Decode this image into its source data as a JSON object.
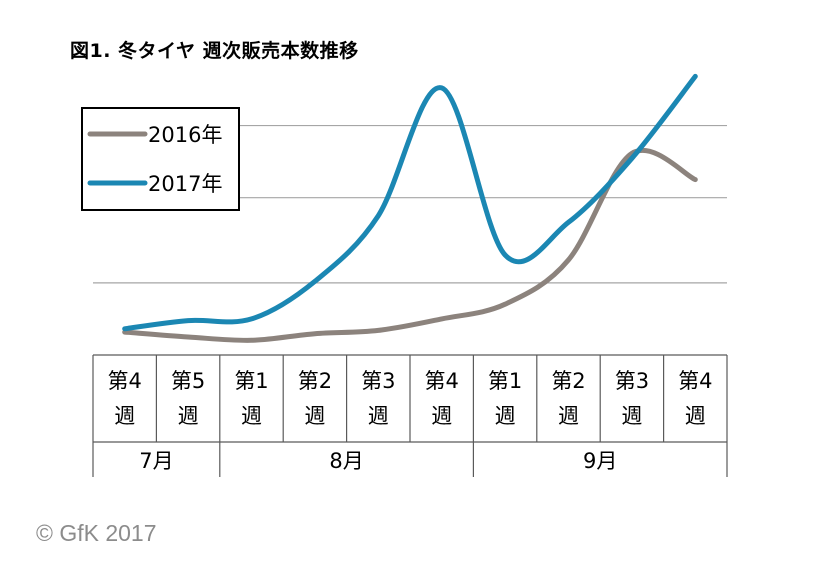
{
  "chart_data": {
    "type": "line",
    "title": "図1. 冬タイヤ 週次販売本数推移",
    "categories": [
      "第4週",
      "第5週",
      "第1週",
      "第2週",
      "第3週",
      "第4週",
      "第1週",
      "第2週",
      "第3週",
      "第4週"
    ],
    "category_lines": [
      [
        "第4",
        "週"
      ],
      [
        "第5",
        "週"
      ],
      [
        "第1",
        "週"
      ],
      [
        "第2",
        "週"
      ],
      [
        "第3",
        "週"
      ],
      [
        "第4",
        "週"
      ],
      [
        "第1",
        "週"
      ],
      [
        "第2",
        "週"
      ],
      [
        "第3",
        "週"
      ],
      [
        "第4",
        "週"
      ]
    ],
    "months": [
      {
        "label": "7月",
        "span": 2
      },
      {
        "label": "8月",
        "span": 4
      },
      {
        "label": "9月",
        "span": 4
      }
    ],
    "series": [
      {
        "name": "2016年",
        "color": "#8c837d",
        "values": [
          0.4,
          0.1,
          -0.1,
          0.3,
          0.5,
          1.2,
          2.1,
          4.8,
          11.3,
          9.7
        ]
      },
      {
        "name": "2017年",
        "color": "#1b87b3",
        "values": [
          0.6,
          1.1,
          1.2,
          3.5,
          7.5,
          15.3,
          5.1,
          7.1,
          11.0,
          16.0
        ]
      }
    ],
    "ylim": [
      -1,
      17
    ],
    "gridlines": [
      3.4,
      8.6,
      13.0
    ],
    "y_axis_labels": false,
    "legend_position": "top-left",
    "credit": "© GfK 2017"
  }
}
